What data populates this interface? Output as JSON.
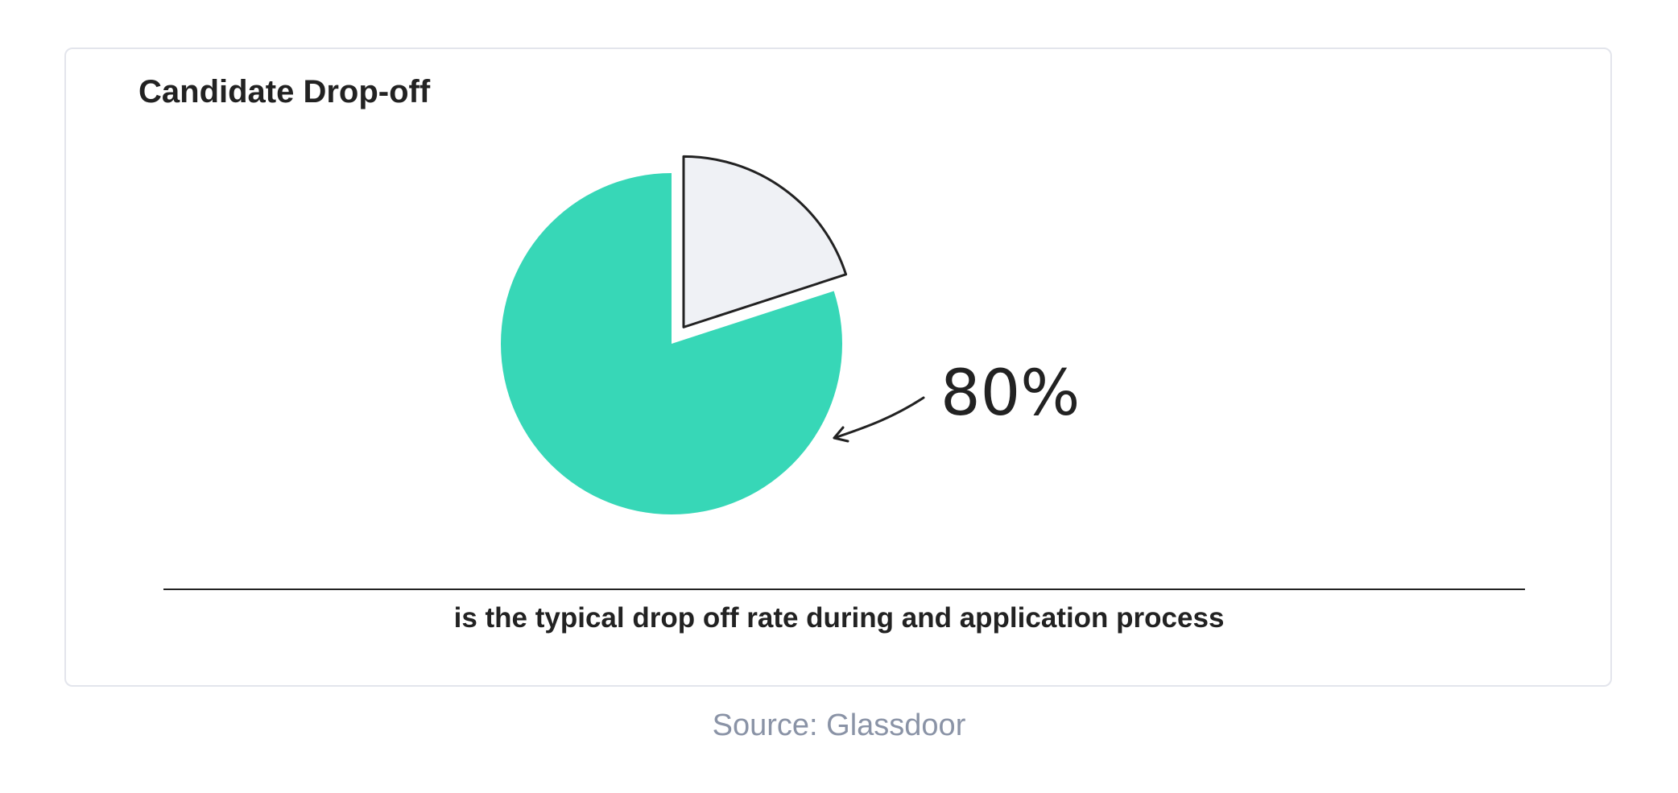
{
  "chart_data": {
    "type": "pie",
    "title": "Candidate Drop-off",
    "slices": [
      {
        "value": 80,
        "color": "#37d7b7",
        "exploded": false
      },
      {
        "value": 20,
        "color": "#eff1f5",
        "exploded": true
      }
    ],
    "annotation": "80%",
    "caption": "is the typical drop off rate during and application process",
    "source": "Source: Glassdoor"
  }
}
